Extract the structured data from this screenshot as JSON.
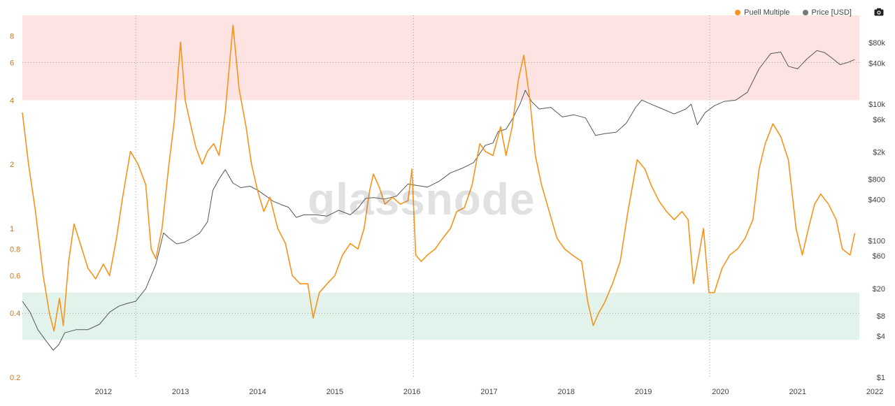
{
  "legend": {
    "puell_label": "Puell Multiple",
    "price_label": "Price [USD]"
  },
  "watermark": "glassnode",
  "colors": {
    "puell": "#f7931a",
    "price": "#555555",
    "upper_band": "#fde3e1",
    "lower_band": "#e2f3ec"
  },
  "icons": {
    "camera": "camera-icon"
  },
  "chart_data": {
    "type": "line",
    "bands": [
      {
        "name": "upper",
        "from": 4,
        "to": 10
      },
      {
        "name": "lower",
        "from": 0.3,
        "to": 0.5
      }
    ],
    "reference_lines_y_left": [
      6,
      0.4
    ],
    "reference_lines_x": [
      2012.92,
      2016.52,
      2020.36
    ],
    "x_ticks": [
      "2012",
      "2013",
      "2014",
      "2015",
      "2016",
      "2017",
      "2018",
      "2019",
      "2020",
      "2021",
      "2022"
    ],
    "y_left_ticks": [
      {
        "label": "8",
        "value": 8
      },
      {
        "label": "6",
        "value": 6
      },
      {
        "label": "4",
        "value": 4
      },
      {
        "label": "2",
        "value": 2
      },
      {
        "label": "1",
        "value": 1
      },
      {
        "label": "0.8",
        "value": 0.8
      },
      {
        "label": "0.6",
        "value": 0.6
      },
      {
        "label": "0.4",
        "value": 0.4
      },
      {
        "label": "0.2",
        "value": 0.2
      }
    ],
    "y_right_ticks": [
      {
        "label": "$80k",
        "value": 80000
      },
      {
        "label": "$40k",
        "value": 40000
      },
      {
        "label": "$10k",
        "value": 10000
      },
      {
        "label": "$6k",
        "value": 6000
      },
      {
        "label": "$2k",
        "value": 2000
      },
      {
        "label": "$800",
        "value": 800
      },
      {
        "label": "$400",
        "value": 400
      },
      {
        "label": "$100",
        "value": 100
      },
      {
        "label": "$60",
        "value": 60
      },
      {
        "label": "$20",
        "value": 20
      },
      {
        "label": "$8",
        "value": 8
      },
      {
        "label": "$4",
        "value": 4
      },
      {
        "label": "$1",
        "value": 1
      }
    ],
    "series": [
      {
        "name": "Puell Multiple",
        "axis": "left",
        "points": [
          [
            2011.45,
            3.5
          ],
          [
            2011.53,
            2.0
          ],
          [
            2011.62,
            1.2
          ],
          [
            2011.72,
            0.6
          ],
          [
            2011.8,
            0.4
          ],
          [
            2011.86,
            0.33
          ],
          [
            2011.93,
            0.47
          ],
          [
            2011.98,
            0.35
          ],
          [
            2012.05,
            0.7
          ],
          [
            2012.12,
            1.05
          ],
          [
            2012.2,
            0.85
          ],
          [
            2012.3,
            0.65
          ],
          [
            2012.4,
            0.58
          ],
          [
            2012.5,
            0.68
          ],
          [
            2012.58,
            0.6
          ],
          [
            2012.67,
            0.9
          ],
          [
            2012.75,
            1.4
          ],
          [
            2012.85,
            2.3
          ],
          [
            2012.95,
            2.0
          ],
          [
            2013.05,
            1.6
          ],
          [
            2013.12,
            0.8
          ],
          [
            2013.18,
            0.72
          ],
          [
            2013.26,
            1.0
          ],
          [
            2013.35,
            2.0
          ],
          [
            2013.42,
            3.2
          ],
          [
            2013.5,
            7.5
          ],
          [
            2013.56,
            4.0
          ],
          [
            2013.62,
            3.2
          ],
          [
            2013.7,
            2.4
          ],
          [
            2013.78,
            2.0
          ],
          [
            2013.85,
            2.3
          ],
          [
            2013.93,
            2.5
          ],
          [
            2014.0,
            2.2
          ],
          [
            2014.08,
            3.5
          ],
          [
            2014.18,
            9.0
          ],
          [
            2014.26,
            4.5
          ],
          [
            2014.35,
            3.0
          ],
          [
            2014.42,
            2.0
          ],
          [
            2014.5,
            1.5
          ],
          [
            2014.58,
            1.2
          ],
          [
            2014.66,
            1.4
          ],
          [
            2014.76,
            1.0
          ],
          [
            2014.86,
            0.85
          ],
          [
            2014.95,
            0.6
          ],
          [
            2015.05,
            0.55
          ],
          [
            2015.15,
            0.55
          ],
          [
            2015.22,
            0.38
          ],
          [
            2015.3,
            0.5
          ],
          [
            2015.4,
            0.55
          ],
          [
            2015.5,
            0.6
          ],
          [
            2015.6,
            0.75
          ],
          [
            2015.7,
            0.85
          ],
          [
            2015.8,
            0.8
          ],
          [
            2015.88,
            1.0
          ],
          [
            2015.95,
            1.5
          ],
          [
            2016.0,
            1.8
          ],
          [
            2016.08,
            1.55
          ],
          [
            2016.15,
            1.3
          ],
          [
            2016.25,
            1.4
          ],
          [
            2016.35,
            1.3
          ],
          [
            2016.45,
            1.35
          ],
          [
            2016.5,
            1.9
          ],
          [
            2016.55,
            0.75
          ],
          [
            2016.62,
            0.7
          ],
          [
            2016.7,
            0.75
          ],
          [
            2016.8,
            0.8
          ],
          [
            2016.9,
            0.9
          ],
          [
            2017.0,
            1.0
          ],
          [
            2017.08,
            1.2
          ],
          [
            2017.18,
            1.25
          ],
          [
            2017.28,
            1.6
          ],
          [
            2017.38,
            2.5
          ],
          [
            2017.45,
            2.3
          ],
          [
            2017.55,
            2.2
          ],
          [
            2017.65,
            3.0
          ],
          [
            2017.72,
            2.2
          ],
          [
            2017.8,
            3.0
          ],
          [
            2017.88,
            5.0
          ],
          [
            2017.95,
            6.5
          ],
          [
            2018.03,
            4.0
          ],
          [
            2018.1,
            2.2
          ],
          [
            2018.18,
            1.6
          ],
          [
            2018.28,
            1.2
          ],
          [
            2018.38,
            0.9
          ],
          [
            2018.48,
            0.8
          ],
          [
            2018.58,
            0.75
          ],
          [
            2018.7,
            0.7
          ],
          [
            2018.78,
            0.45
          ],
          [
            2018.85,
            0.35
          ],
          [
            2018.92,
            0.4
          ],
          [
            2019.0,
            0.45
          ],
          [
            2019.1,
            0.55
          ],
          [
            2019.2,
            0.7
          ],
          [
            2019.3,
            1.2
          ],
          [
            2019.42,
            2.1
          ],
          [
            2019.52,
            1.9
          ],
          [
            2019.6,
            1.6
          ],
          [
            2019.7,
            1.35
          ],
          [
            2019.8,
            1.2
          ],
          [
            2019.9,
            1.1
          ],
          [
            2020.0,
            1.2
          ],
          [
            2020.08,
            1.1
          ],
          [
            2020.15,
            0.55
          ],
          [
            2020.22,
            0.75
          ],
          [
            2020.28,
            1.0
          ],
          [
            2020.35,
            0.5
          ],
          [
            2020.42,
            0.5
          ],
          [
            2020.52,
            0.65
          ],
          [
            2020.62,
            0.75
          ],
          [
            2020.72,
            0.8
          ],
          [
            2020.82,
            0.9
          ],
          [
            2020.92,
            1.1
          ],
          [
            2021.0,
            1.9
          ],
          [
            2021.08,
            2.5
          ],
          [
            2021.18,
            3.1
          ],
          [
            2021.28,
            2.7
          ],
          [
            2021.38,
            2.1
          ],
          [
            2021.48,
            1.0
          ],
          [
            2021.56,
            0.75
          ],
          [
            2021.64,
            1.0
          ],
          [
            2021.72,
            1.3
          ],
          [
            2021.8,
            1.45
          ],
          [
            2021.9,
            1.3
          ],
          [
            2022.0,
            1.1
          ],
          [
            2022.08,
            0.8
          ],
          [
            2022.18,
            0.75
          ],
          [
            2022.24,
            0.95
          ]
        ]
      },
      {
        "name": "Price [USD]",
        "axis": "right",
        "points": [
          [
            2011.45,
            13
          ],
          [
            2011.55,
            9
          ],
          [
            2011.65,
            5
          ],
          [
            2011.75,
            3.5
          ],
          [
            2011.85,
            2.5
          ],
          [
            2011.92,
            3
          ],
          [
            2012.0,
            4.5
          ],
          [
            2012.15,
            5
          ],
          [
            2012.3,
            5
          ],
          [
            2012.45,
            6
          ],
          [
            2012.58,
            9
          ],
          [
            2012.7,
            11
          ],
          [
            2012.8,
            12
          ],
          [
            2012.92,
            13
          ],
          [
            2013.05,
            20
          ],
          [
            2013.18,
            45
          ],
          [
            2013.28,
            130
          ],
          [
            2013.35,
            110
          ],
          [
            2013.45,
            90
          ],
          [
            2013.55,
            95
          ],
          [
            2013.65,
            110
          ],
          [
            2013.75,
            130
          ],
          [
            2013.85,
            190
          ],
          [
            2013.92,
            550
          ],
          [
            2014.0,
            800
          ],
          [
            2014.08,
            1100
          ],
          [
            2014.18,
            700
          ],
          [
            2014.28,
            600
          ],
          [
            2014.4,
            630
          ],
          [
            2014.5,
            550
          ],
          [
            2014.6,
            460
          ],
          [
            2014.7,
            380
          ],
          [
            2014.8,
            340
          ],
          [
            2014.9,
            310
          ],
          [
            2015.0,
            220
          ],
          [
            2015.1,
            240
          ],
          [
            2015.25,
            240
          ],
          [
            2015.4,
            230
          ],
          [
            2015.55,
            280
          ],
          [
            2015.7,
            240
          ],
          [
            2015.8,
            300
          ],
          [
            2015.9,
            420
          ],
          [
            2016.0,
            430
          ],
          [
            2016.15,
            410
          ],
          [
            2016.3,
            450
          ],
          [
            2016.45,
            680
          ],
          [
            2016.55,
            650
          ],
          [
            2016.7,
            610
          ],
          [
            2016.85,
            740
          ],
          [
            2017.0,
            990
          ],
          [
            2017.15,
            1150
          ],
          [
            2017.3,
            1400
          ],
          [
            2017.45,
            2500
          ],
          [
            2017.55,
            2700
          ],
          [
            2017.62,
            4000
          ],
          [
            2017.72,
            4300
          ],
          [
            2017.8,
            6000
          ],
          [
            2017.9,
            10000
          ],
          [
            2017.97,
            16000
          ],
          [
            2018.05,
            11000
          ],
          [
            2018.15,
            8500
          ],
          [
            2018.3,
            9000
          ],
          [
            2018.45,
            6500
          ],
          [
            2018.6,
            7000
          ],
          [
            2018.75,
            6300
          ],
          [
            2018.88,
            3500
          ],
          [
            2019.0,
            3700
          ],
          [
            2019.15,
            3900
          ],
          [
            2019.28,
            5300
          ],
          [
            2019.4,
            9000
          ],
          [
            2019.48,
            11500
          ],
          [
            2019.6,
            10000
          ],
          [
            2019.75,
            8500
          ],
          [
            2019.9,
            7200
          ],
          [
            2020.05,
            8500
          ],
          [
            2020.12,
            10000
          ],
          [
            2020.2,
            5000
          ],
          [
            2020.3,
            7500
          ],
          [
            2020.42,
            9500
          ],
          [
            2020.55,
            11000
          ],
          [
            2020.7,
            11500
          ],
          [
            2020.85,
            15000
          ],
          [
            2021.0,
            33000
          ],
          [
            2021.15,
            55000
          ],
          [
            2021.28,
            58000
          ],
          [
            2021.38,
            36000
          ],
          [
            2021.5,
            33000
          ],
          [
            2021.62,
            46000
          ],
          [
            2021.75,
            61000
          ],
          [
            2021.85,
            57000
          ],
          [
            2021.95,
            47000
          ],
          [
            2022.05,
            38000
          ],
          [
            2022.15,
            41000
          ],
          [
            2022.24,
            45000
          ]
        ]
      }
    ]
  }
}
